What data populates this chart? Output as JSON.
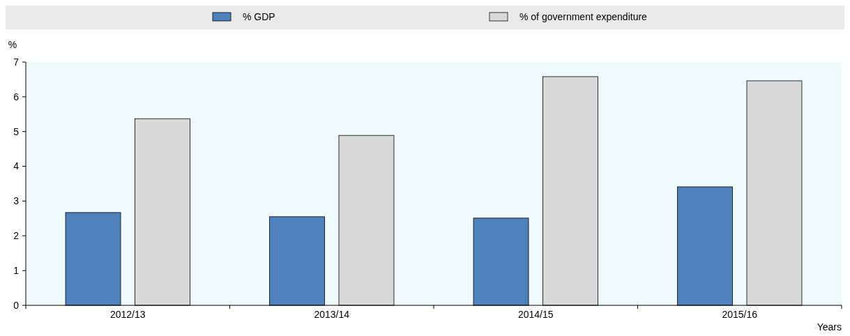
{
  "chart_data": {
    "type": "bar",
    "categories": [
      "2012/13",
      "2013/14",
      "2014/15",
      "2015/16"
    ],
    "series": [
      {
        "name": "% GDP",
        "color": "#4f81bd",
        "values": [
          2.67,
          2.55,
          2.51,
          3.41
        ]
      },
      {
        "name": "% of government expenditure",
        "color": "#d9d9d9",
        "values": [
          5.37,
          4.89,
          6.58,
          6.46
        ]
      }
    ],
    "ylim": [
      0,
      7
    ],
    "yticks": [
      0,
      1,
      2,
      3,
      4,
      5,
      6,
      7
    ],
    "ylabel": "%",
    "xlabel": "Years",
    "legend": "top",
    "grid": false
  }
}
